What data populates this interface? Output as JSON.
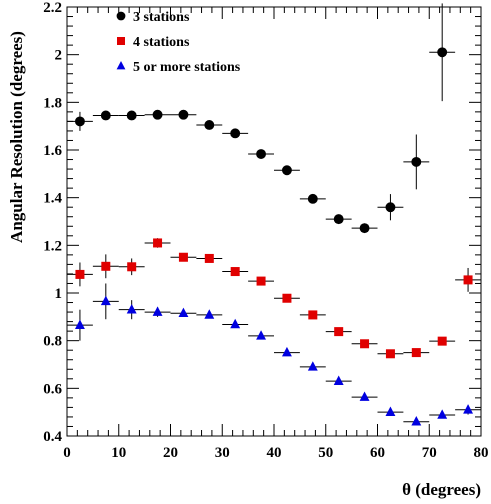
{
  "chart_data": {
    "type": "scatter",
    "xlabel": "θ (degrees)",
    "ylabel": "Angular Resolution (degrees)",
    "xlim": [
      0,
      80
    ],
    "ylim": [
      0.4,
      2.2
    ],
    "grid": false,
    "legend_position": "top-left",
    "x_ticks": [
      0,
      10,
      20,
      30,
      40,
      50,
      60,
      70,
      80
    ],
    "x_tick_labels": [
      "0",
      "10",
      "20",
      "30",
      "40",
      "50",
      "60",
      "70",
      "80"
    ],
    "y_ticks": [
      0.4,
      0.6,
      0.8,
      1.0,
      1.2,
      1.4,
      1.6,
      1.8,
      2.0,
      2.2
    ],
    "y_tick_labels": [
      "0.4",
      "0.6",
      "0.8",
      "1",
      "1.2",
      "1.4",
      "1.6",
      "1.8",
      "2",
      "2.2"
    ],
    "x_bin_half_width": 2.5,
    "series": [
      {
        "name": "3 stations",
        "color": "#000000",
        "marker": "circle",
        "x": [
          2.5,
          7.5,
          12.5,
          17.5,
          22.5,
          27.5,
          32.5,
          37.5,
          42.5,
          47.5,
          52.5,
          57.5,
          62.5,
          67.5,
          72.5
        ],
        "y": [
          1.72,
          1.745,
          1.745,
          1.748,
          1.748,
          1.705,
          1.67,
          1.583,
          1.515,
          1.395,
          1.31,
          1.272,
          1.36,
          1.55,
          2.01
        ],
        "yerr": [
          0.04,
          0.012,
          0.01,
          0.01,
          0.01,
          0.012,
          0.012,
          0.012,
          0.012,
          0.012,
          0.015,
          0.02,
          0.055,
          0.115,
          0.205
        ]
      },
      {
        "name": "4 stations",
        "color": "#e00000",
        "marker": "square",
        "x": [
          2.5,
          7.5,
          12.5,
          17.5,
          22.5,
          27.5,
          32.5,
          37.5,
          42.5,
          47.5,
          52.5,
          57.5,
          62.5,
          67.5,
          72.5,
          77.5
        ],
        "y": [
          1.078,
          1.112,
          1.11,
          1.21,
          1.15,
          1.145,
          1.09,
          1.05,
          0.978,
          0.908,
          0.838,
          0.787,
          0.745,
          0.75,
          0.798,
          1.055
        ],
        "yerr": [
          0.05,
          0.05,
          0.035,
          0.02,
          0.01,
          0.01,
          0.01,
          0.01,
          0.01,
          0.01,
          0.01,
          0.01,
          0.01,
          0.01,
          0.01,
          0.05
        ]
      },
      {
        "name": "5 or more stations",
        "color": "#0000e0",
        "marker": "triangle",
        "x": [
          2.5,
          7.5,
          12.5,
          17.5,
          22.5,
          27.5,
          32.5,
          37.5,
          42.5,
          47.5,
          52.5,
          57.5,
          62.5,
          67.5,
          72.5,
          77.5
        ],
        "y": [
          0.865,
          0.965,
          0.93,
          0.92,
          0.915,
          0.908,
          0.868,
          0.82,
          0.75,
          0.69,
          0.63,
          0.563,
          0.5,
          0.46,
          0.488,
          0.51
        ],
        "yerr": [
          0.065,
          0.075,
          0.04,
          0.02,
          0.01,
          0.015,
          0.01,
          0.01,
          0.01,
          0.01,
          0.01,
          0.01,
          0.01,
          0.01,
          0.01,
          0.02
        ]
      }
    ]
  }
}
